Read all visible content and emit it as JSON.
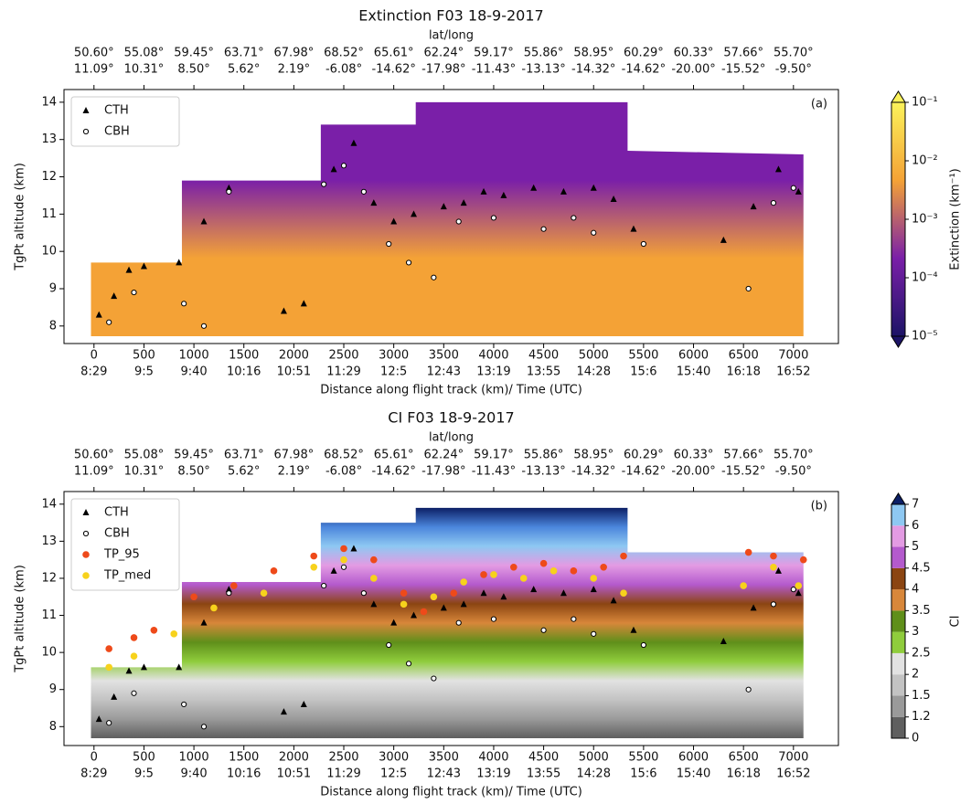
{
  "chart_data": [
    {
      "type": "curtain",
      "title": "Extinction F03  18-9-2017",
      "panel_label": "(a)",
      "top_axis_label": "lat/long",
      "x_label": "Distance along flight track (km)/ Time (UTC)",
      "y_label": "TgPt altitude (km)",
      "xlim": [
        -300,
        7450
      ],
      "xticks": [
        0,
        500,
        1000,
        1500,
        2000,
        2500,
        3000,
        3500,
        4000,
        4500,
        5000,
        5500,
        6000,
        6500,
        7000
      ],
      "time_labels": [
        "8:29",
        "9:5",
        "9:40",
        "10:16",
        "10:51",
        "11:29",
        "12:5",
        "12:43",
        "13:19",
        "13:55",
        "14:28",
        "15:6",
        "15:40",
        "16:18",
        "16:52"
      ],
      "lat_labels": [
        "50.60°",
        "55.08°",
        "59.45°",
        "63.71°",
        "67.98°",
        "68.52°",
        "65.61°",
        "62.24°",
        "59.17°",
        "55.86°",
        "58.95°",
        "60.29°",
        "60.33°",
        "57.66°",
        "55.70°"
      ],
      "long_labels": [
        "11.09°",
        "10.31°",
        "8.50°",
        "5.62°",
        "2.19°",
        "-6.08°",
        "-14.62°",
        "-17.98°",
        "-11.43°",
        "-13.13°",
        "-14.32°",
        "-14.62°",
        "-20.00°",
        "-15.52°",
        "-9.50°"
      ],
      "ylim": [
        7.53,
        14.34
      ],
      "yticks": [
        8,
        9,
        10,
        11,
        12,
        13,
        14
      ],
      "legend": "upper left",
      "curtain": {
        "x": [
          -30,
          880,
          880,
          2270,
          2270,
          3220,
          3220,
          5340,
          5340,
          7100
        ],
        "y": [
          9.7,
          9.7,
          11.9,
          11.9,
          13.4,
          13.4,
          14.0,
          14.0,
          12.7,
          12.6
        ]
      },
      "series": [
        {
          "name": "CTH",
          "color": "#000000",
          "marker": "triangle",
          "x": [
            50,
            200,
            350,
            500,
            850,
            1100,
            1350,
            1900,
            2100,
            2400,
            2600,
            2800,
            3000,
            3200,
            3500,
            3700,
            3900,
            4100,
            4400,
            4700,
            5000,
            5200,
            5400,
            6300,
            6600,
            6850,
            7050
          ],
          "values": [
            8.3,
            8.8,
            9.5,
            9.6,
            9.7,
            10.8,
            11.7,
            8.4,
            8.6,
            12.2,
            12.9,
            11.3,
            10.8,
            11.0,
            11.2,
            11.3,
            11.6,
            11.5,
            11.7,
            11.6,
            11.7,
            11.4,
            10.6,
            10.3,
            11.2,
            12.2,
            11.6
          ]
        },
        {
          "name": "CBH",
          "color": "#ffffff",
          "marker": "circle",
          "x": [
            150,
            400,
            900,
            1100,
            1350,
            2300,
            2500,
            2700,
            2950,
            3150,
            3400,
            3650,
            4000,
            4500,
            4800,
            5000,
            5500,
            6550,
            6800,
            7000
          ],
          "values": [
            8.1,
            8.9,
            8.6,
            8.0,
            11.6,
            11.8,
            12.3,
            11.6,
            10.2,
            9.7,
            9.3,
            10.8,
            10.9,
            10.6,
            10.9,
            10.5,
            10.2,
            9.0,
            11.3,
            11.7
          ]
        }
      ],
      "colorscale": {
        "log": true,
        "lim": [
          1e-05,
          0.1
        ],
        "extend": "both",
        "label": "Extinction (km⁻¹)",
        "colors": [
          "#1c1466",
          "#7a1fa8",
          "#f4a236",
          "#fbf25a"
        ],
        "ticks": [
          {
            "value": 0.1,
            "label": "10⁻¹"
          },
          {
            "value": 0.01,
            "label": "10⁻²"
          },
          {
            "value": 0.001,
            "label": "10⁻³"
          },
          {
            "value": 0.0001,
            "label": "10⁻⁴"
          },
          {
            "value": 1e-05,
            "label": "10⁻⁵"
          }
        ]
      }
    },
    {
      "type": "curtain",
      "title": "CI F03  18-9-2017",
      "panel_label": "(b)",
      "top_axis_label": "lat/long",
      "x_label": "Distance along flight track (km)/ Time (UTC)",
      "y_label": "TgPt altitude (km)",
      "xlim": [
        -300,
        7450
      ],
      "xticks": [
        0,
        500,
        1000,
        1500,
        2000,
        2500,
        3000,
        3500,
        4000,
        4500,
        5000,
        5500,
        6000,
        6500,
        7000
      ],
      "time_labels": [
        "8:29",
        "9:5",
        "9:40",
        "10:16",
        "10:51",
        "11:29",
        "12:5",
        "12:43",
        "13:19",
        "13:55",
        "14:28",
        "15:6",
        "15:40",
        "16:18",
        "16:52"
      ],
      "lat_labels": [
        "50.60°",
        "55.08°",
        "59.45°",
        "63.71°",
        "67.98°",
        "68.52°",
        "65.61°",
        "62.24°",
        "59.17°",
        "55.86°",
        "58.95°",
        "60.29°",
        "60.33°",
        "57.66°",
        "55.70°"
      ],
      "long_labels": [
        "11.09°",
        "10.31°",
        "8.50°",
        "5.62°",
        "2.19°",
        "-6.08°",
        "-14.62°",
        "-17.98°",
        "-11.43°",
        "-13.13°",
        "-14.32°",
        "-14.62°",
        "-20.00°",
        "-15.52°",
        "-9.50°"
      ],
      "ylim": [
        7.49,
        14.34
      ],
      "yticks": [
        8,
        9,
        10,
        11,
        12,
        13,
        14
      ],
      "legend": "upper left",
      "curtain": {
        "x": [
          -30,
          880,
          880,
          2270,
          2270,
          3220,
          3220,
          5340,
          5340,
          7100
        ],
        "y": [
          9.6,
          9.6,
          11.9,
          11.9,
          13.5,
          13.5,
          13.9,
          13.9,
          12.7,
          12.7
        ]
      },
      "series": [
        {
          "name": "CTH",
          "color": "#000000",
          "marker": "triangle",
          "x": [
            50,
            200,
            350,
            500,
            850,
            1100,
            1350,
            1900,
            2100,
            2400,
            2600,
            2800,
            3000,
            3200,
            3500,
            3700,
            3900,
            4100,
            4400,
            4700,
            5000,
            5200,
            5400,
            6300,
            6600,
            6850,
            7050
          ],
          "values": [
            8.2,
            8.8,
            9.5,
            9.6,
            9.6,
            10.8,
            11.7,
            8.4,
            8.6,
            12.2,
            12.8,
            11.3,
            10.8,
            11.0,
            11.2,
            11.3,
            11.6,
            11.5,
            11.7,
            11.6,
            11.7,
            11.4,
            10.6,
            10.3,
            11.2,
            12.2,
            11.6
          ]
        },
        {
          "name": "CBH",
          "color": "#ffffff",
          "marker": "circle",
          "x": [
            150,
            400,
            900,
            1100,
            1350,
            2300,
            2500,
            2700,
            2950,
            3150,
            3400,
            3650,
            4000,
            4500,
            4800,
            5000,
            5500,
            6550,
            6800,
            7000
          ],
          "values": [
            8.1,
            8.9,
            8.6,
            8.0,
            11.6,
            11.8,
            12.3,
            11.6,
            10.2,
            9.7,
            9.3,
            10.8,
            10.9,
            10.6,
            10.9,
            10.5,
            10.2,
            9.0,
            11.3,
            11.7
          ]
        },
        {
          "name": "TP_95",
          "color": "#ee4a1a",
          "marker": "dot",
          "x": [
            150,
            400,
            600,
            1000,
            1400,
            1800,
            2200,
            2500,
            2800,
            3100,
            3300,
            3600,
            3900,
            4200,
            4500,
            4800,
            5100,
            5300,
            6550,
            6800,
            7100
          ],
          "values": [
            10.1,
            10.4,
            10.6,
            11.5,
            11.8,
            12.2,
            12.6,
            12.8,
            12.5,
            11.6,
            11.1,
            11.6,
            12.1,
            12.3,
            12.4,
            12.2,
            12.3,
            12.6,
            12.7,
            12.6,
            12.5
          ]
        },
        {
          "name": "TP_med",
          "color": "#f7d21c",
          "marker": "dot",
          "x": [
            150,
            400,
            800,
            1200,
            1700,
            2200,
            2500,
            2800,
            3100,
            3400,
            3700,
            4000,
            4300,
            4600,
            5000,
            5300,
            6500,
            6800,
            7050
          ],
          "values": [
            9.6,
            9.9,
            10.5,
            11.2,
            11.6,
            12.3,
            12.5,
            12.0,
            11.3,
            11.5,
            11.9,
            12.1,
            12.0,
            12.2,
            12.0,
            11.6,
            11.8,
            12.3,
            11.8
          ]
        }
      ],
      "colorscale": {
        "log": false,
        "extend": "max",
        "label": "CI",
        "extend_color": "#0c1f66",
        "levels": [
          0,
          1.2,
          1.5,
          2,
          2.5,
          3,
          3.5,
          4,
          4.5,
          5,
          6,
          7
        ],
        "colors": [
          "#5f5f5f",
          "#9a9a9a",
          "#c3c3c3",
          "#e2e2e2",
          "#8fcc3c",
          "#5f8f1a",
          "#d8873a",
          "#8b4512",
          "#b45acd",
          "#e39be3",
          "#8ec8f2",
          "#4b86dc"
        ]
      }
    }
  ]
}
